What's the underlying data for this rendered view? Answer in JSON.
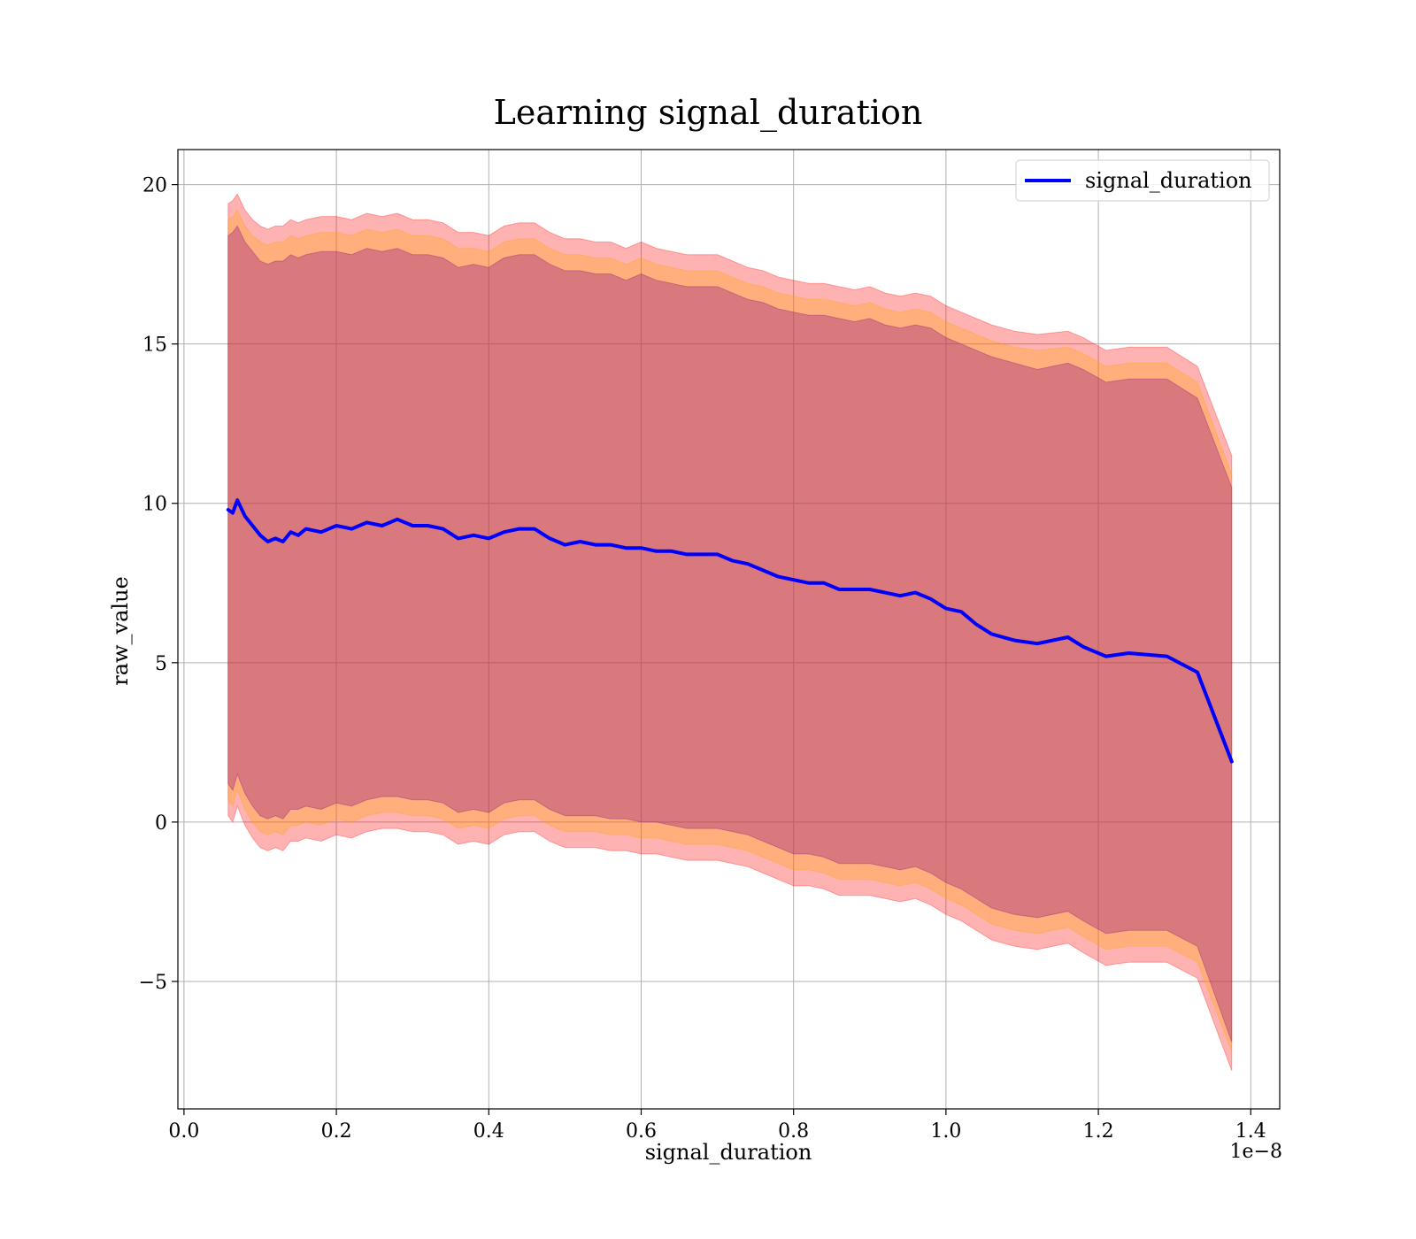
{
  "chart_data": {
    "type": "line",
    "title": "Learning signal_duration",
    "xlabel": "signal_duration",
    "ylabel": "raw_value",
    "x_offset_label": "1e−8",
    "xlim": [
      -0.008,
      1.438
    ],
    "ylim": [
      -9.0,
      21.1
    ],
    "xticks": [
      0.0,
      0.2,
      0.4,
      0.6,
      0.8,
      1.0,
      1.2,
      1.4
    ],
    "xtick_labels": [
      "0.0",
      "0.2",
      "0.4",
      "0.6",
      "0.8",
      "1.0",
      "1.2",
      "1.4"
    ],
    "yticks": [
      -5,
      0,
      5,
      10,
      15,
      20
    ],
    "ytick_labels": [
      "−5",
      "0",
      "5",
      "10",
      "15",
      "20"
    ],
    "grid": true,
    "legend": {
      "position": "top-right"
    },
    "series": [
      {
        "name": "signal_duration",
        "color": "#0000ff",
        "x": [
          0.058,
          0.064,
          0.07,
          0.08,
          0.09,
          0.1,
          0.11,
          0.12,
          0.13,
          0.14,
          0.15,
          0.16,
          0.18,
          0.2,
          0.22,
          0.24,
          0.26,
          0.28,
          0.3,
          0.32,
          0.34,
          0.36,
          0.38,
          0.4,
          0.42,
          0.44,
          0.46,
          0.48,
          0.5,
          0.52,
          0.54,
          0.56,
          0.58,
          0.6,
          0.62,
          0.64,
          0.66,
          0.68,
          0.7,
          0.72,
          0.74,
          0.76,
          0.78,
          0.8,
          0.82,
          0.84,
          0.86,
          0.88,
          0.9,
          0.92,
          0.94,
          0.96,
          0.98,
          1.0,
          1.02,
          1.04,
          1.06,
          1.09,
          1.12,
          1.16,
          1.18,
          1.21,
          1.24,
          1.29,
          1.33,
          1.375
        ],
        "values": [
          9.8,
          9.7,
          10.1,
          9.6,
          9.3,
          9.0,
          8.8,
          8.9,
          8.8,
          9.1,
          9.0,
          9.2,
          9.1,
          9.3,
          9.2,
          9.4,
          9.3,
          9.5,
          9.3,
          9.3,
          9.2,
          8.9,
          9.0,
          8.9,
          9.1,
          9.2,
          9.2,
          8.9,
          8.7,
          8.8,
          8.7,
          8.7,
          8.6,
          8.6,
          8.5,
          8.5,
          8.4,
          8.4,
          8.4,
          8.2,
          8.1,
          7.9,
          7.7,
          7.6,
          7.5,
          7.5,
          7.3,
          7.3,
          7.3,
          7.2,
          7.1,
          7.2,
          7.0,
          6.7,
          6.6,
          6.2,
          5.9,
          5.7,
          5.6,
          5.8,
          5.5,
          5.2,
          5.3,
          5.2,
          4.7,
          1.9
        ]
      }
    ],
    "bands": [
      {
        "color": "#ff0000",
        "opacity": 0.3,
        "x": [
          0.058,
          0.064,
          0.07,
          0.08,
          0.09,
          0.1,
          0.11,
          0.12,
          0.13,
          0.14,
          0.15,
          0.16,
          0.18,
          0.2,
          0.22,
          0.24,
          0.26,
          0.28,
          0.3,
          0.32,
          0.34,
          0.36,
          0.38,
          0.4,
          0.42,
          0.44,
          0.46,
          0.48,
          0.5,
          0.52,
          0.54,
          0.56,
          0.58,
          0.6,
          0.62,
          0.64,
          0.66,
          0.68,
          0.7,
          0.72,
          0.74,
          0.76,
          0.78,
          0.8,
          0.82,
          0.84,
          0.86,
          0.88,
          0.9,
          0.92,
          0.94,
          0.96,
          0.98,
          1.0,
          1.02,
          1.04,
          1.06,
          1.09,
          1.12,
          1.16,
          1.18,
          1.21,
          1.24,
          1.29,
          1.33,
          1.375
        ],
        "upper": [
          19.4,
          19.5,
          19.7,
          19.2,
          18.9,
          18.7,
          18.6,
          18.7,
          18.7,
          18.9,
          18.8,
          18.9,
          19.0,
          19.0,
          18.9,
          19.1,
          19.0,
          19.1,
          18.9,
          18.9,
          18.8,
          18.5,
          18.5,
          18.4,
          18.7,
          18.8,
          18.8,
          18.5,
          18.3,
          18.3,
          18.2,
          18.2,
          18.0,
          18.2,
          18.0,
          17.9,
          17.8,
          17.8,
          17.8,
          17.6,
          17.4,
          17.3,
          17.1,
          17.0,
          16.9,
          16.9,
          16.8,
          16.7,
          16.8,
          16.6,
          16.5,
          16.6,
          16.5,
          16.2,
          16.0,
          15.8,
          15.6,
          15.4,
          15.3,
          15.4,
          15.2,
          14.8,
          14.9,
          14.9,
          14.3,
          11.5
        ],
        "lower": [
          0.2,
          0.0,
          0.5,
          -0.1,
          -0.5,
          -0.8,
          -0.9,
          -0.8,
          -0.9,
          -0.6,
          -0.6,
          -0.5,
          -0.6,
          -0.4,
          -0.5,
          -0.3,
          -0.2,
          -0.2,
          -0.3,
          -0.3,
          -0.4,
          -0.7,
          -0.6,
          -0.7,
          -0.4,
          -0.3,
          -0.3,
          -0.6,
          -0.8,
          -0.8,
          -0.8,
          -0.9,
          -0.9,
          -1.0,
          -1.0,
          -1.1,
          -1.2,
          -1.2,
          -1.2,
          -1.3,
          -1.4,
          -1.6,
          -1.8,
          -2.0,
          -2.0,
          -2.1,
          -2.3,
          -2.3,
          -2.3,
          -2.4,
          -2.5,
          -2.4,
          -2.6,
          -2.9,
          -3.1,
          -3.4,
          -3.7,
          -3.9,
          -4.0,
          -3.8,
          -4.1,
          -4.5,
          -4.4,
          -4.4,
          -4.9,
          -7.8
        ]
      },
      {
        "color": "#ffa500",
        "opacity": 0.3,
        "x": [
          0.058,
          0.064,
          0.07,
          0.08,
          0.09,
          0.1,
          0.11,
          0.12,
          0.13,
          0.14,
          0.15,
          0.16,
          0.18,
          0.2,
          0.22,
          0.24,
          0.26,
          0.28,
          0.3,
          0.32,
          0.34,
          0.36,
          0.38,
          0.4,
          0.42,
          0.44,
          0.46,
          0.48,
          0.5,
          0.52,
          0.54,
          0.56,
          0.58,
          0.6,
          0.62,
          0.64,
          0.66,
          0.68,
          0.7,
          0.72,
          0.74,
          0.76,
          0.78,
          0.8,
          0.82,
          0.84,
          0.86,
          0.88,
          0.9,
          0.92,
          0.94,
          0.96,
          0.98,
          1.0,
          1.02,
          1.04,
          1.06,
          1.09,
          1.12,
          1.16,
          1.18,
          1.21,
          1.24,
          1.29,
          1.33,
          1.375
        ],
        "upper": [
          18.9,
          19.0,
          19.2,
          18.7,
          18.4,
          18.2,
          18.1,
          18.2,
          18.2,
          18.4,
          18.3,
          18.4,
          18.5,
          18.5,
          18.4,
          18.6,
          18.5,
          18.6,
          18.4,
          18.4,
          18.3,
          18.0,
          18.0,
          17.9,
          18.2,
          18.3,
          18.3,
          18.0,
          17.8,
          17.8,
          17.7,
          17.7,
          17.5,
          17.7,
          17.5,
          17.4,
          17.3,
          17.3,
          17.3,
          17.1,
          16.9,
          16.8,
          16.6,
          16.5,
          16.4,
          16.4,
          16.3,
          16.2,
          16.3,
          16.1,
          16.0,
          16.1,
          16.0,
          15.7,
          15.5,
          15.3,
          15.1,
          14.9,
          14.8,
          14.9,
          14.7,
          14.3,
          14.4,
          14.4,
          13.8,
          10.9
        ],
        "lower": [
          0.7,
          0.5,
          1.0,
          0.4,
          0.0,
          -0.3,
          -0.4,
          -0.3,
          -0.4,
          -0.1,
          -0.1,
          0.0,
          -0.1,
          0.1,
          0.0,
          0.2,
          0.3,
          0.3,
          0.2,
          0.2,
          0.1,
          -0.2,
          -0.1,
          -0.2,
          0.1,
          0.2,
          0.2,
          -0.1,
          -0.3,
          -0.3,
          -0.3,
          -0.4,
          -0.4,
          -0.5,
          -0.5,
          -0.6,
          -0.7,
          -0.7,
          -0.7,
          -0.8,
          -0.9,
          -1.1,
          -1.3,
          -1.5,
          -1.5,
          -1.6,
          -1.8,
          -1.8,
          -1.8,
          -1.9,
          -2.0,
          -1.9,
          -2.1,
          -2.4,
          -2.6,
          -2.9,
          -3.2,
          -3.4,
          -3.5,
          -3.3,
          -3.6,
          -4.0,
          -3.9,
          -3.9,
          -4.4,
          -7.2
        ]
      },
      {
        "color": "#800080",
        "opacity": 0.3,
        "x": [
          0.058,
          0.064,
          0.07,
          0.08,
          0.09,
          0.1,
          0.11,
          0.12,
          0.13,
          0.14,
          0.15,
          0.16,
          0.18,
          0.2,
          0.22,
          0.24,
          0.26,
          0.28,
          0.3,
          0.32,
          0.34,
          0.36,
          0.38,
          0.4,
          0.42,
          0.44,
          0.46,
          0.48,
          0.5,
          0.52,
          0.54,
          0.56,
          0.58,
          0.6,
          0.62,
          0.64,
          0.66,
          0.68,
          0.7,
          0.72,
          0.74,
          0.76,
          0.78,
          0.8,
          0.82,
          0.84,
          0.86,
          0.88,
          0.9,
          0.92,
          0.94,
          0.96,
          0.98,
          1.0,
          1.02,
          1.04,
          1.06,
          1.09,
          1.12,
          1.16,
          1.18,
          1.21,
          1.24,
          1.29,
          1.33,
          1.375
        ],
        "upper": [
          18.4,
          18.5,
          18.7,
          18.2,
          17.9,
          17.6,
          17.5,
          17.6,
          17.6,
          17.8,
          17.7,
          17.8,
          17.9,
          17.9,
          17.8,
          18.0,
          17.9,
          18.0,
          17.8,
          17.8,
          17.7,
          17.4,
          17.5,
          17.4,
          17.7,
          17.8,
          17.8,
          17.5,
          17.3,
          17.3,
          17.2,
          17.2,
          17.0,
          17.2,
          17.0,
          16.9,
          16.8,
          16.8,
          16.8,
          16.6,
          16.4,
          16.3,
          16.1,
          16.0,
          15.9,
          15.9,
          15.8,
          15.7,
          15.8,
          15.6,
          15.5,
          15.6,
          15.5,
          15.2,
          15.0,
          14.8,
          14.6,
          14.4,
          14.2,
          14.4,
          14.2,
          13.8,
          13.9,
          13.9,
          13.3,
          10.5
        ],
        "lower": [
          1.2,
          1.0,
          1.5,
          0.9,
          0.5,
          0.2,
          0.1,
          0.2,
          0.1,
          0.4,
          0.4,
          0.5,
          0.4,
          0.6,
          0.5,
          0.7,
          0.8,
          0.8,
          0.7,
          0.7,
          0.6,
          0.3,
          0.4,
          0.3,
          0.6,
          0.7,
          0.7,
          0.4,
          0.2,
          0.2,
          0.2,
          0.1,
          0.1,
          0.0,
          0.0,
          -0.1,
          -0.2,
          -0.2,
          -0.2,
          -0.3,
          -0.4,
          -0.6,
          -0.8,
          -1.0,
          -1.0,
          -1.1,
          -1.3,
          -1.3,
          -1.3,
          -1.4,
          -1.5,
          -1.4,
          -1.6,
          -1.9,
          -2.1,
          -2.4,
          -2.7,
          -2.9,
          -3.0,
          -2.8,
          -3.1,
          -3.5,
          -3.4,
          -3.4,
          -3.9,
          -6.9
        ]
      }
    ]
  }
}
